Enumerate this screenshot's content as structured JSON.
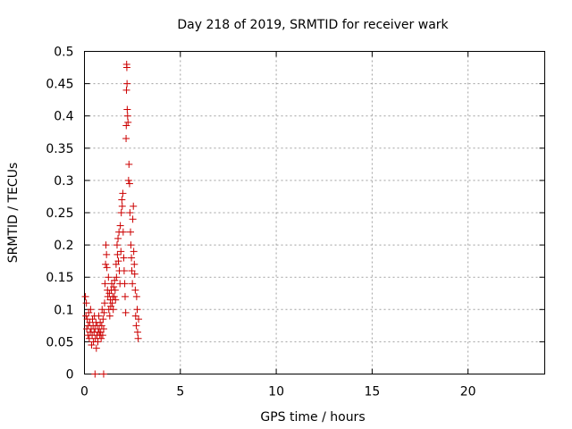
{
  "chart_data": {
    "type": "scatter",
    "title": "Day 218 of 2019, SRMTID for receiver wark",
    "xlabel": "GPS time / hours",
    "ylabel": "SRMTID / TECUs",
    "xlim": [
      0,
      24
    ],
    "ylim": [
      0,
      0.5
    ],
    "xticks": [
      0,
      5,
      10,
      15,
      20
    ],
    "xtick_labels": [
      "0",
      "5",
      "10",
      "15",
      "20"
    ],
    "yticks": [
      0,
      0.05,
      0.1,
      0.15,
      0.2,
      0.25,
      0.3,
      0.35,
      0.4,
      0.45,
      0.5
    ],
    "ytick_labels": [
      "0",
      "0.05",
      "0.1",
      "0.15",
      "0.2",
      "0.25",
      "0.3",
      "0.35",
      "0.4",
      "0.45",
      "0.5"
    ],
    "grid": true,
    "legend": "none",
    "marker": "+",
    "color": "#cc0000",
    "series": [
      {
        "points": [
          [
            0.05,
            0.12
          ],
          [
            0.08,
            0.09
          ],
          [
            0.1,
            0.11
          ],
          [
            0.12,
            0.07
          ],
          [
            0.15,
            0.085
          ],
          [
            0.18,
            0.06
          ],
          [
            0.2,
            0.075
          ],
          [
            0.22,
            0.095
          ],
          [
            0.25,
            0.055
          ],
          [
            0.27,
            0.08
          ],
          [
            0.3,
            0.065
          ],
          [
            0.32,
            0.1
          ],
          [
            0.35,
            0.07
          ],
          [
            0.37,
            0.045
          ],
          [
            0.4,
            0.06
          ],
          [
            0.42,
            0.085
          ],
          [
            0.45,
            0.075
          ],
          [
            0.47,
            0.05
          ],
          [
            0.5,
            0.065
          ],
          [
            0.52,
            0.09
          ],
          [
            0.55,
            0.07
          ],
          [
            0.57,
            0.055
          ],
          [
            0.6,
            0.08
          ],
          [
            0.62,
            0.04
          ],
          [
            0.65,
            0.06
          ],
          [
            0.67,
            0.075
          ],
          [
            0.7,
            0.05
          ],
          [
            0.72,
            0.065
          ],
          [
            0.75,
            0.09
          ],
          [
            0.77,
            0.07
          ],
          [
            0.8,
            0.06
          ],
          [
            0.82,
            0.08
          ],
          [
            0.85,
            0.065
          ],
          [
            0.87,
            0.055
          ],
          [
            0.9,
            0.075
          ],
          [
            0.92,
            0.1
          ],
          [
            0.95,
            0.06
          ],
          [
            0.97,
            0.085
          ],
          [
            1.0,
            0.07
          ],
          [
            1.02,
            0.095
          ],
          [
            1.05,
            0.11
          ],
          [
            1.07,
            0.14
          ],
          [
            1.1,
            0.17
          ],
          [
            1.12,
            0.2
          ],
          [
            1.15,
            0.185
          ],
          [
            1.17,
            0.165
          ],
          [
            1.2,
            0.13
          ],
          [
            1.22,
            0.12
          ],
          [
            1.25,
            0.15
          ],
          [
            1.27,
            0.1
          ],
          [
            1.3,
            0.125
          ],
          [
            1.32,
            0.09
          ],
          [
            1.35,
            0.115
          ],
          [
            1.37,
            0.105
          ],
          [
            1.4,
            0.13
          ],
          [
            1.42,
            0.14
          ],
          [
            1.45,
            0.11
          ],
          [
            1.47,
            0.12
          ],
          [
            1.5,
            0.1
          ],
          [
            1.52,
            0.135
          ],
          [
            1.55,
            0.12
          ],
          [
            1.57,
            0.145
          ],
          [
            1.6,
            0.13
          ],
          [
            1.62,
            0.115
          ],
          [
            1.65,
            0.17
          ],
          [
            1.67,
            0.15
          ],
          [
            1.7,
            0.2
          ],
          [
            1.72,
            0.185
          ],
          [
            1.75,
            0.21
          ],
          [
            1.77,
            0.175
          ],
          [
            1.8,
            0.22
          ],
          [
            1.82,
            0.16
          ],
          [
            1.85,
            0.14
          ],
          [
            1.87,
            0.23
          ],
          [
            1.9,
            0.19
          ],
          [
            1.92,
            0.25
          ],
          [
            1.95,
            0.27
          ],
          [
            1.97,
            0.26
          ],
          [
            2.0,
            0.28
          ],
          [
            2.02,
            0.22
          ],
          [
            2.05,
            0.18
          ],
          [
            2.07,
            0.16
          ],
          [
            2.1,
            0.14
          ],
          [
            2.12,
            0.12
          ],
          [
            2.15,
            0.095
          ],
          [
            2.17,
            0.365
          ],
          [
            2.18,
            0.385
          ],
          [
            2.19,
            0.44
          ],
          [
            2.2,
            0.48
          ],
          [
            2.21,
            0.475
          ],
          [
            2.22,
            0.45
          ],
          [
            2.23,
            0.41
          ],
          [
            2.25,
            0.4
          ],
          [
            2.27,
            0.39
          ],
          [
            2.3,
            0.3
          ],
          [
            2.32,
            0.325
          ],
          [
            2.35,
            0.295
          ],
          [
            2.37,
            0.25
          ],
          [
            2.4,
            0.22
          ],
          [
            2.42,
            0.2
          ],
          [
            2.45,
            0.18
          ],
          [
            2.47,
            0.16
          ],
          [
            2.5,
            0.14
          ],
          [
            2.52,
            0.24
          ],
          [
            2.55,
            0.26
          ],
          [
            2.57,
            0.19
          ],
          [
            2.6,
            0.17
          ],
          [
            2.62,
            0.155
          ],
          [
            2.65,
            0.13
          ],
          [
            2.67,
            0.09
          ],
          [
            2.7,
            0.075
          ],
          [
            2.72,
            0.12
          ],
          [
            2.75,
            0.1
          ],
          [
            2.77,
            0.065
          ],
          [
            2.8,
            0.055
          ],
          [
            2.82,
            0.085
          ],
          [
            0.55,
            0.0
          ],
          [
            1.0,
            0.0
          ]
        ]
      }
    ]
  }
}
